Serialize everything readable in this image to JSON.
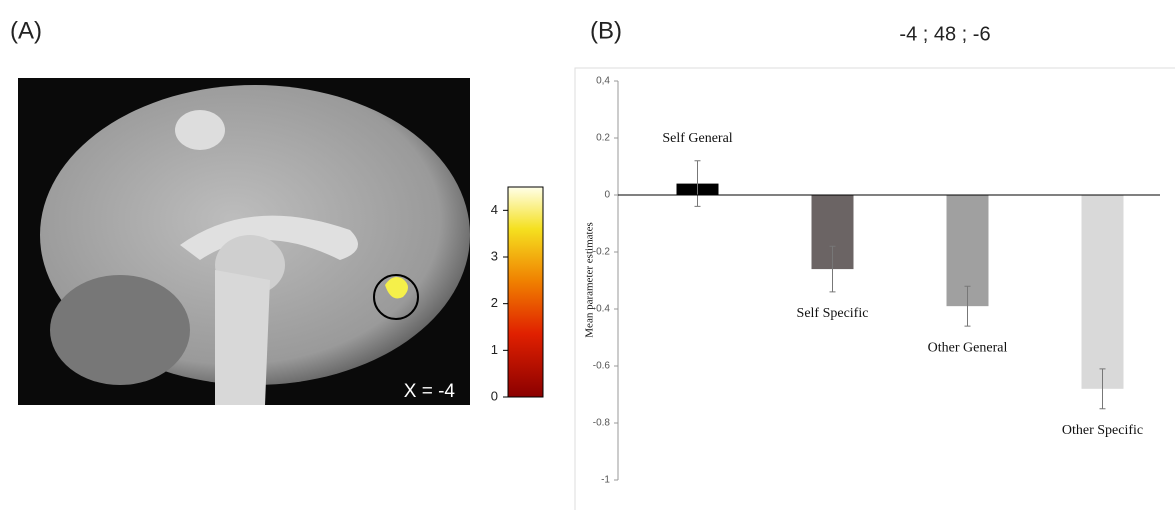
{
  "panel_a": {
    "label": "(A)",
    "slice_label": "X = -4",
    "colorbar": {
      "lim": [
        0,
        4.5
      ],
      "ticks": [
        0,
        1,
        2,
        3,
        4
      ]
    }
  },
  "chart_data": {
    "type": "bar",
    "panel_label": "(B)",
    "title": "-4 ; 48 ; -6",
    "y_label": "Mean parameter estimates",
    "categories": [
      "Self General",
      "Self Specific",
      "Other General",
      "Other Specific"
    ],
    "values": [
      0.04,
      -0.26,
      -0.39,
      -0.68
    ],
    "errors": [
      0.08,
      0.08,
      0.07,
      0.07
    ],
    "colors": [
      "#000000",
      "#6b6464",
      "#a0a0a0",
      "#d9d9d9"
    ],
    "ylim": [
      -1,
      0.4
    ],
    "yticks": [
      {
        "value": 0.4,
        "label": "0,4"
      },
      0.2,
      0,
      -0.2,
      -0.4,
      -0.6,
      -0.8,
      -1
    ]
  }
}
